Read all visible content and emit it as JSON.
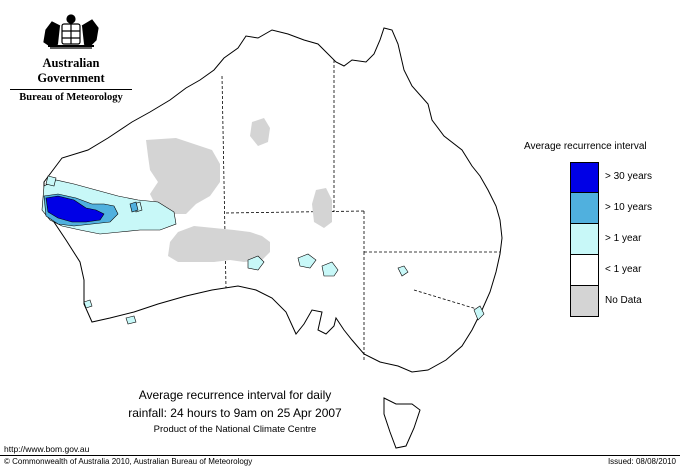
{
  "header": {
    "gov_name": "Australian Government",
    "agency": "Bureau of Meteorology"
  },
  "legend": {
    "title": "Average recurrence interval",
    "items": [
      {
        "label": "> 30 years",
        "color": "#0000e6"
      },
      {
        "label": "> 10 years",
        "color": "#50b0de"
      },
      {
        "label": "> 1 year",
        "color": "#c8f8f8"
      },
      {
        "label": "< 1 year",
        "color": "#ffffff"
      },
      {
        "label": "No Data",
        "color": "#d4d4d4"
      }
    ]
  },
  "caption": {
    "line1": "Average recurrence interval for daily",
    "line2": "rainfall: 24 hours to 9am on 25 Apr 2007",
    "line3": "Product of the National Climate Centre"
  },
  "footer": {
    "url": "http://www.bom.gov.au",
    "copyright": "© Commonwealth of Australia 2010, Australian Bureau of Meteorology",
    "issued": "Issued: 08/08/2010"
  },
  "colors": {
    "background": "#ffffff",
    "outline": "#000000",
    "no_data": "#d4d4d4",
    "gt_30_years": "#0000e6",
    "gt_10_years": "#50b0de",
    "gt_1_year": "#c8f8f8"
  }
}
